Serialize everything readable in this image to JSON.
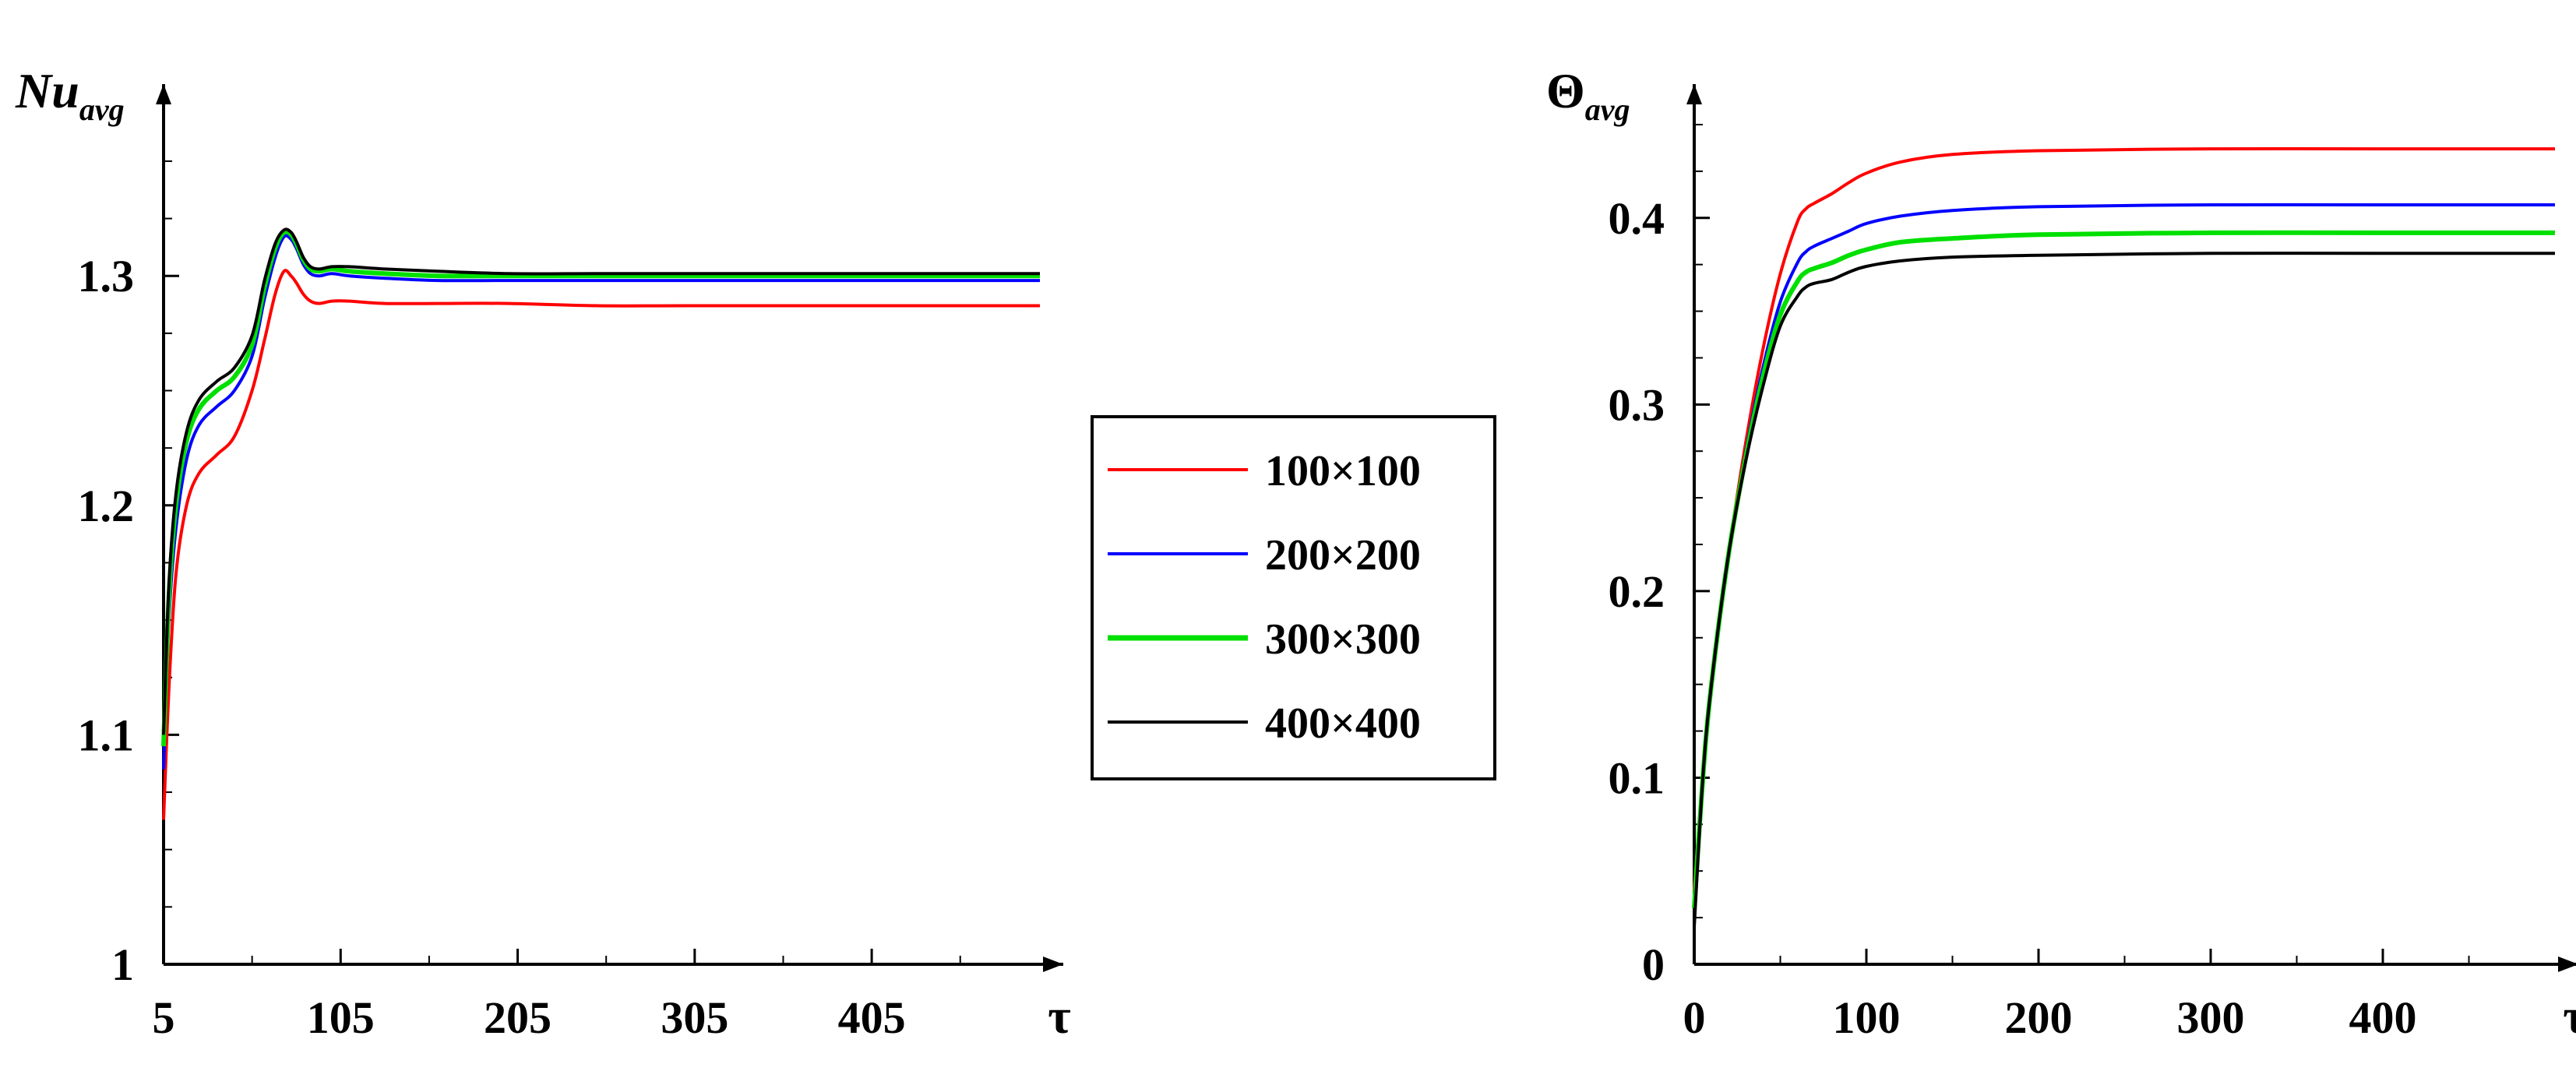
{
  "chart_data": [
    {
      "type": "line",
      "ylabel_main": "Nu",
      "ylabel_sub": "avg",
      "xlabel": "τ",
      "xlim": [
        5,
        500
      ],
      "ylim": [
        1.0,
        1.37
      ],
      "xticks": [
        "5",
        "105",
        "205",
        "305",
        "405"
      ],
      "xtick_values": [
        5,
        105,
        205,
        305,
        405
      ],
      "yticks": [
        "1",
        "1.1",
        "1.2",
        "1.3"
      ],
      "ytick_values": [
        1.0,
        1.1,
        1.2,
        1.3
      ],
      "series": [
        {
          "name": "100×100",
          "color": "#ff0000",
          "x": [
            5,
            8,
            12,
            18,
            25,
            35,
            45,
            55,
            62,
            68,
            73,
            77,
            80,
            84,
            88,
            93,
            100,
            110,
            130,
            160,
            200,
            250,
            300,
            400,
            500
          ],
          "y": [
            1.063,
            1.12,
            1.17,
            1.2,
            1.214,
            1.222,
            1.23,
            1.25,
            1.272,
            1.292,
            1.302,
            1.3,
            1.297,
            1.292,
            1.289,
            1.288,
            1.289,
            1.289,
            1.288,
            1.288,
            1.288,
            1.287,
            1.287,
            1.287,
            1.287
          ]
        },
        {
          "name": "200×200",
          "color": "#0000ff",
          "x": [
            5,
            8,
            12,
            18,
            25,
            35,
            45,
            55,
            62,
            68,
            73,
            77,
            80,
            84,
            88,
            93,
            100,
            110,
            130,
            160,
            200,
            250,
            300,
            400,
            500
          ],
          "y": [
            1.085,
            1.15,
            1.19,
            1.22,
            1.235,
            1.243,
            1.25,
            1.265,
            1.29,
            1.308,
            1.317,
            1.316,
            1.312,
            1.305,
            1.301,
            1.3,
            1.301,
            1.3,
            1.299,
            1.298,
            1.298,
            1.298,
            1.298,
            1.298,
            1.298
          ]
        },
        {
          "name": "300×300",
          "color": "#00e000",
          "x": [
            5,
            8,
            12,
            18,
            25,
            35,
            45,
            55,
            62,
            68,
            73,
            77,
            80,
            84,
            88,
            93,
            100,
            110,
            130,
            160,
            200,
            250,
            300,
            400,
            500
          ],
          "y": [
            1.095,
            1.16,
            1.2,
            1.228,
            1.242,
            1.25,
            1.256,
            1.27,
            1.295,
            1.312,
            1.319,
            1.318,
            1.314,
            1.307,
            1.303,
            1.302,
            1.303,
            1.302,
            1.301,
            1.3,
            1.3,
            1.3,
            1.3,
            1.3,
            1.3
          ]
        },
        {
          "name": "400×400",
          "color": "#000000",
          "x": [
            5,
            8,
            12,
            18,
            25,
            35,
            45,
            55,
            62,
            68,
            73,
            77,
            80,
            84,
            88,
            93,
            100,
            110,
            130,
            160,
            200,
            250,
            300,
            400,
            500
          ],
          "y": [
            1.1,
            1.165,
            1.205,
            1.232,
            1.246,
            1.254,
            1.26,
            1.274,
            1.298,
            1.314,
            1.32,
            1.319,
            1.315,
            1.308,
            1.304,
            1.303,
            1.304,
            1.304,
            1.303,
            1.302,
            1.301,
            1.301,
            1.301,
            1.301,
            1.301
          ]
        }
      ]
    },
    {
      "type": "line",
      "ylabel_main": "Θ",
      "ylabel_sub": "avg",
      "xlabel": "τ",
      "xlim": [
        0,
        500
      ],
      "ylim": [
        0,
        0.455
      ],
      "xticks": [
        "0",
        "100",
        "200",
        "300",
        "400"
      ],
      "xtick_values": [
        0,
        100,
        200,
        300,
        400
      ],
      "yticks": [
        "0",
        "0.1",
        "0.2",
        "0.3",
        "0.4"
      ],
      "ytick_values": [
        0,
        0.1,
        0.2,
        0.3,
        0.4
      ],
      "series": [
        {
          "name": "100×100",
          "color": "#ff0000",
          "x": [
            0,
            5,
            10,
            20,
            30,
            40,
            50,
            60,
            65,
            70,
            80,
            90,
            100,
            120,
            150,
            200,
            300,
            400,
            500
          ],
          "y": [
            0.04,
            0.1,
            0.15,
            0.22,
            0.28,
            0.33,
            0.37,
            0.398,
            0.405,
            0.408,
            0.413,
            0.419,
            0.424,
            0.43,
            0.434,
            0.436,
            0.437,
            0.437,
            0.437
          ]
        },
        {
          "name": "200×200",
          "color": "#0000ff",
          "x": [
            0,
            5,
            10,
            20,
            30,
            40,
            50,
            60,
            65,
            70,
            80,
            90,
            100,
            120,
            150,
            200,
            300,
            400,
            500
          ],
          "y": [
            0.035,
            0.1,
            0.15,
            0.22,
            0.275,
            0.32,
            0.355,
            0.376,
            0.382,
            0.385,
            0.389,
            0.393,
            0.397,
            0.401,
            0.404,
            0.406,
            0.407,
            0.407,
            0.407
          ]
        },
        {
          "name": "300×300",
          "color": "#00e000",
          "x": [
            0,
            5,
            10,
            20,
            30,
            40,
            50,
            60,
            65,
            70,
            80,
            90,
            100,
            120,
            150,
            200,
            300,
            400,
            500
          ],
          "y": [
            0.03,
            0.1,
            0.15,
            0.22,
            0.272,
            0.315,
            0.348,
            0.366,
            0.371,
            0.373,
            0.376,
            0.38,
            0.383,
            0.387,
            0.389,
            0.391,
            0.392,
            0.392,
            0.392
          ]
        },
        {
          "name": "400×400",
          "color": "#000000",
          "x": [
            0,
            5,
            10,
            20,
            30,
            40,
            50,
            60,
            65,
            70,
            80,
            90,
            100,
            120,
            150,
            200,
            300,
            400,
            500
          ],
          "y": [
            0.02,
            0.1,
            0.15,
            0.22,
            0.27,
            0.31,
            0.342,
            0.358,
            0.363,
            0.365,
            0.367,
            0.371,
            0.374,
            0.377,
            0.379,
            0.38,
            0.381,
            0.381,
            0.381
          ]
        }
      ]
    }
  ],
  "legend": {
    "entries": [
      {
        "label": "100×100",
        "color": "#ff0000"
      },
      {
        "label": "200×200",
        "color": "#0000ff"
      },
      {
        "label": "300×300",
        "color": "#00e000"
      },
      {
        "label": "400×400",
        "color": "#000000"
      }
    ]
  }
}
